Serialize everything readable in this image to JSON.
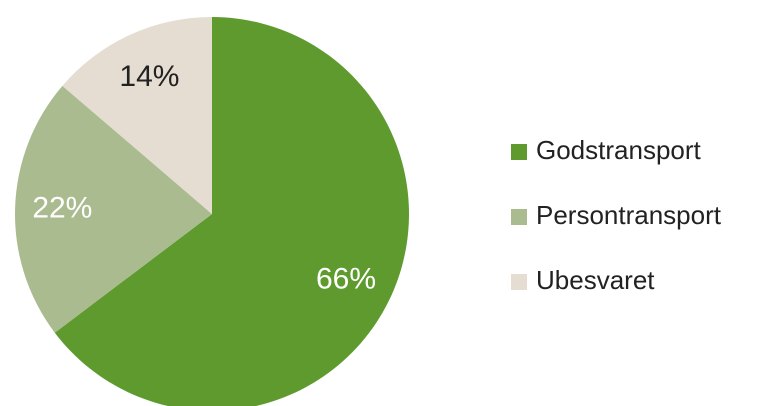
{
  "chart_data": {
    "type": "pie",
    "categories": [
      "Godstransport",
      "Persontransport",
      "Ubesvaret"
    ],
    "values": [
      66,
      22,
      14
    ],
    "value_labels": [
      "66%",
      "22%",
      "14%"
    ],
    "colors": [
      "#5f9a2f",
      "#aabb8f",
      "#e5ddd2"
    ],
    "legend": "right"
  }
}
